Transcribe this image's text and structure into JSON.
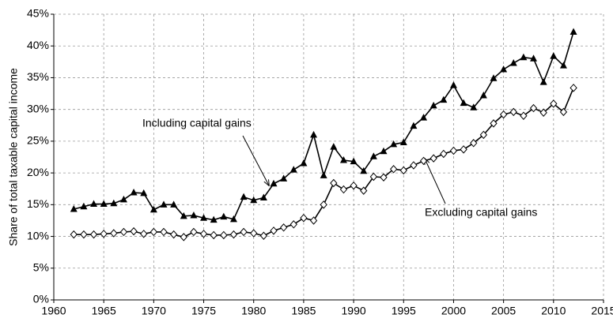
{
  "chart_data": {
    "type": "line",
    "y_label": "Share of total taxable capital income",
    "x": [
      1962,
      1963,
      1964,
      1965,
      1966,
      1967,
      1968,
      1969,
      1970,
      1971,
      1972,
      1973,
      1974,
      1975,
      1976,
      1977,
      1978,
      1979,
      1980,
      1981,
      1982,
      1983,
      1984,
      1985,
      1986,
      1987,
      1988,
      1989,
      1990,
      1991,
      1992,
      1993,
      1994,
      1995,
      1996,
      1997,
      1998,
      1999,
      2000,
      2001,
      2002,
      2003,
      2004,
      2005,
      2006,
      2007,
      2008,
      2009,
      2010,
      2011,
      2012
    ],
    "series": [
      {
        "name": "Including capital gains",
        "color": "#000000",
        "marker": "triangle",
        "values": [
          14.3,
          14.7,
          15.1,
          15.1,
          15.2,
          15.8,
          16.9,
          16.8,
          14.2,
          15.0,
          15.0,
          13.2,
          13.3,
          12.9,
          12.6,
          13.1,
          12.7,
          16.2,
          15.7,
          16.1,
          18.3,
          19.1,
          20.5,
          21.5,
          26.0,
          19.6,
          24.1,
          22.0,
          21.8,
          20.3,
          22.6,
          23.4,
          24.5,
          24.8,
          27.4,
          28.7,
          30.6,
          31.5,
          33.8,
          31.0,
          30.3,
          32.2,
          34.9,
          36.3,
          37.3,
          38.2,
          38.0,
          34.3,
          38.4,
          36.9,
          42.2
        ]
      },
      {
        "name": "Excluding capital gains",
        "color": "#000000",
        "marker": "diamond",
        "values": [
          10.3,
          10.3,
          10.3,
          10.4,
          10.5,
          10.7,
          10.8,
          10.4,
          10.7,
          10.7,
          10.3,
          9.9,
          10.7,
          10.4,
          10.2,
          10.2,
          10.3,
          10.7,
          10.5,
          10.1,
          10.9,
          11.4,
          11.9,
          12.9,
          12.5,
          15.0,
          18.4,
          17.4,
          18.0,
          17.2,
          19.4,
          19.3,
          20.6,
          20.4,
          21.2,
          21.9,
          22.3,
          23.0,
          23.5,
          23.7,
          24.7,
          26.0,
          27.8,
          29.2,
          29.6,
          29.0,
          30.2,
          29.5,
          30.9,
          29.6,
          33.4
        ]
      }
    ],
    "xlim": [
      1960,
      2015
    ],
    "xticks": [
      1960,
      1965,
      1970,
      1975,
      1980,
      1985,
      1990,
      1995,
      2000,
      2005,
      2010,
      2015
    ],
    "ylim": [
      0,
      45
    ],
    "yticks": [
      {
        "value": 0,
        "label": "0%"
      },
      {
        "value": 5,
        "label": "5%"
      },
      {
        "value": 10,
        "label": "10%"
      },
      {
        "value": 15,
        "label": "15%"
      },
      {
        "value": 20,
        "label": "20%"
      },
      {
        "value": 25,
        "label": "25%"
      },
      {
        "value": 30,
        "label": "30%"
      },
      {
        "value": 35,
        "label": "35%"
      },
      {
        "value": 40,
        "label": "40%"
      },
      {
        "value": 45,
        "label": "45%"
      }
    ],
    "grid": true
  }
}
